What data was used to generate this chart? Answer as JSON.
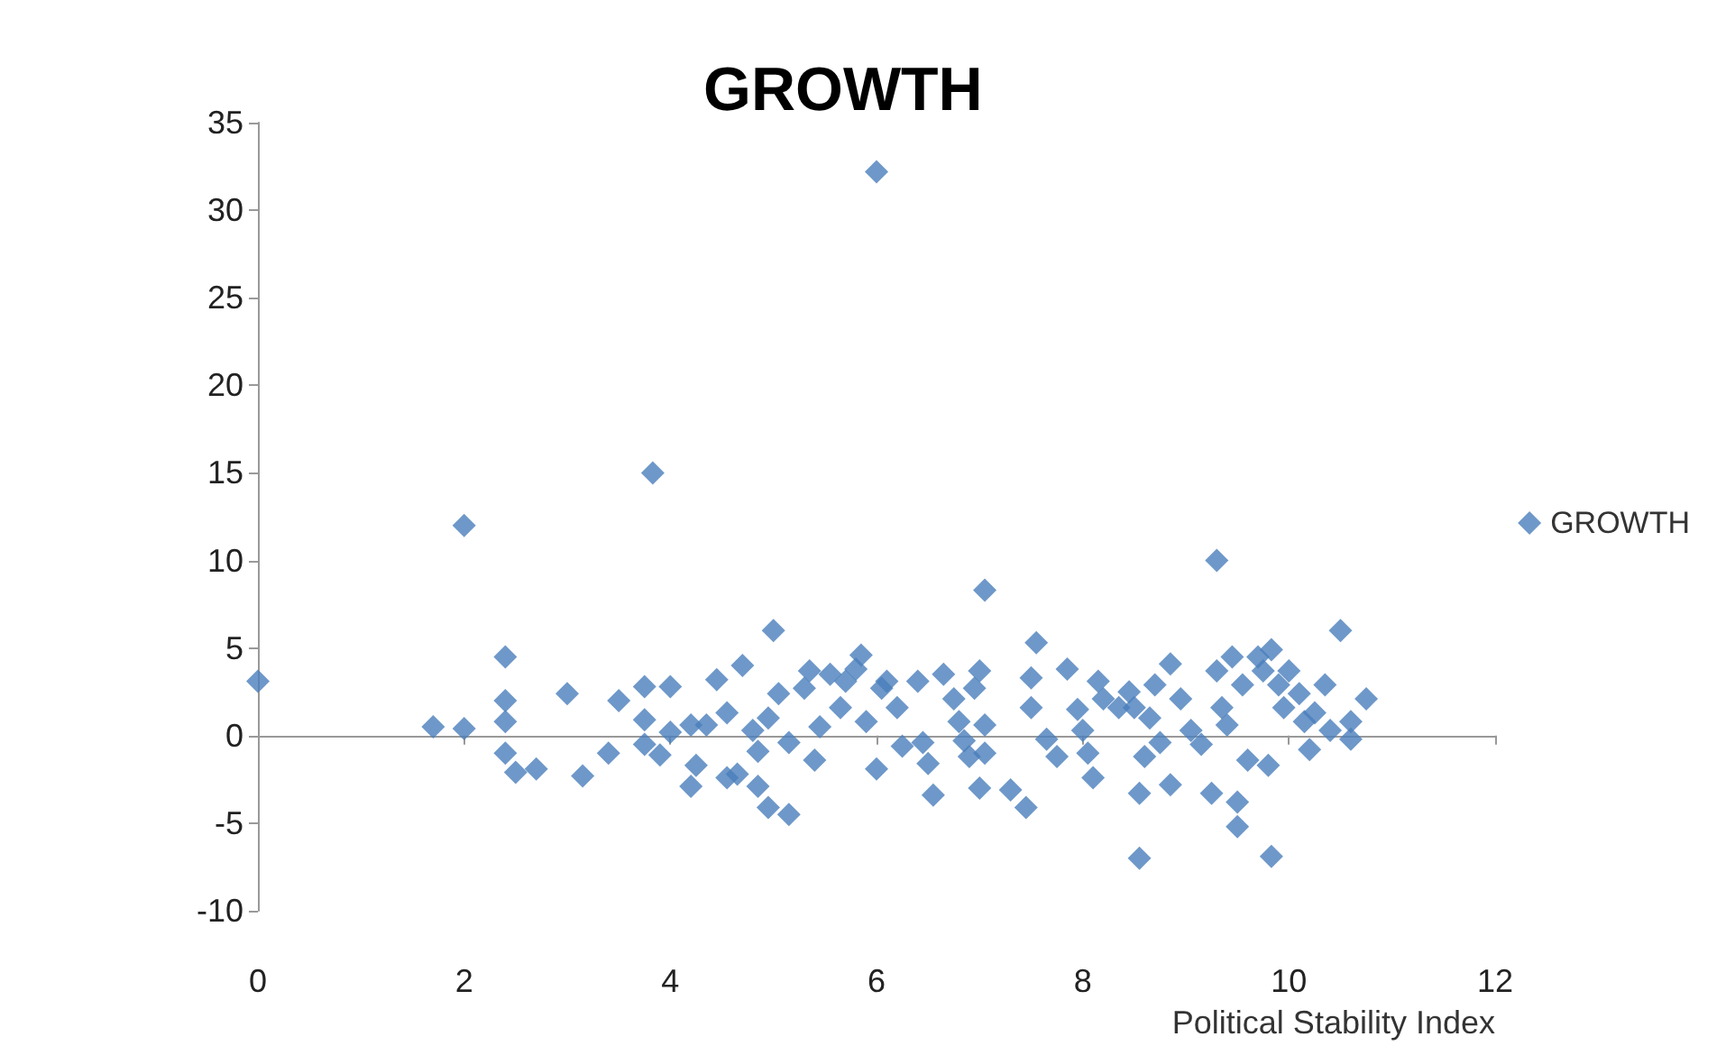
{
  "chart_data": {
    "type": "scatter",
    "title": "GROWTH",
    "xlabel": "Political Stability Index",
    "marker": "diamond",
    "legend": "right",
    "xlim": [
      0,
      12
    ],
    "xticks": [
      0,
      2,
      4,
      6,
      8,
      10,
      12
    ],
    "ylim": [
      -10,
      35
    ],
    "yticks": [
      -10,
      -5,
      0,
      5,
      10,
      15,
      20,
      25,
      30,
      35
    ],
    "series": [
      {
        "name": "GROWTH",
        "color": "#4a7ebb",
        "x": [
          0,
          1.7,
          2.0,
          2.0,
          2.4,
          2.4,
          2.4,
          2.4,
          2.5,
          2.7,
          3.0,
          3.15,
          3.4,
          3.5,
          3.75,
          3.83,
          3.75,
          3.75,
          3.9,
          4.0,
          4.0,
          4.2,
          4.25,
          4.35,
          4.2,
          4.45,
          4.55,
          4.65,
          4.7,
          4.55,
          4.8,
          4.85,
          4.85,
          5.0,
          4.95,
          5.05,
          5.15,
          4.95,
          5.15,
          5.3,
          5.35,
          5.45,
          5.4,
          5.55,
          5.65,
          5.7,
          5.8,
          5.85,
          5.9,
          6.0,
          6.05,
          6.1,
          6.0,
          6.2,
          6.25,
          6.4,
          6.45,
          6.5,
          6.55,
          6.65,
          6.75,
          6.8,
          6.85,
          6.9,
          6.95,
          7.05,
          7.0,
          7.05,
          7.0,
          7.05,
          7.3,
          7.45,
          7.5,
          7.55,
          7.5,
          7.65,
          7.75,
          7.85,
          7.95,
          8.0,
          8.05,
          8.1,
          8.15,
          8.2,
          8.35,
          8.45,
          8.5,
          8.55,
          8.55,
          8.6,
          8.65,
          8.7,
          8.75,
          8.85,
          8.85,
          8.95,
          9.05,
          9.15,
          9.25,
          9.3,
          9.3,
          9.35,
          9.4,
          9.45,
          9.5,
          9.5,
          9.55,
          9.6,
          9.7,
          9.75,
          9.8,
          9.83,
          9.83,
          9.9,
          9.95,
          10.0,
          10.1,
          10.15,
          10.2,
          10.25,
          10.35,
          10.4,
          10.5,
          10.6,
          10.6,
          10.75
        ],
        "values": [
          3.1,
          0.5,
          0.4,
          12.0,
          4.5,
          2.0,
          0.8,
          -1.0,
          -2.1,
          -1.9,
          2.4,
          -2.3,
          -1.0,
          2.0,
          2.8,
          15.0,
          0.9,
          -0.5,
          -1.1,
          2.8,
          0.2,
          0.6,
          -1.7,
          0.6,
          -2.9,
          3.2,
          1.3,
          -2.2,
          4.0,
          -2.4,
          0.3,
          -0.9,
          -2.9,
          6.0,
          1.0,
          2.4,
          -0.4,
          -4.1,
          -4.5,
          2.7,
          3.7,
          0.5,
          -1.4,
          3.5,
          1.6,
          3.1,
          3.8,
          4.6,
          0.8,
          32.2,
          2.7,
          3.1,
          -1.9,
          1.6,
          -0.6,
          3.1,
          -0.4,
          -1.6,
          -3.4,
          3.5,
          2.1,
          0.8,
          -0.3,
          -1.2,
          2.7,
          8.3,
          3.7,
          0.6,
          -3.0,
          -1.0,
          -3.1,
          -4.1,
          3.3,
          5.3,
          1.6,
          -0.2,
          -1.2,
          3.8,
          1.5,
          0.3,
          -1.0,
          -2.4,
          3.1,
          2.1,
          1.6,
          2.5,
          1.6,
          -7.0,
          -3.3,
          -1.2,
          1.0,
          2.9,
          -0.4,
          4.1,
          -2.8,
          2.1,
          0.3,
          -0.5,
          -3.3,
          10.0,
          3.7,
          1.6,
          0.6,
          4.5,
          -5.2,
          -3.8,
          2.9,
          -1.4,
          4.5,
          3.7,
          -1.7,
          -6.9,
          4.9,
          2.9,
          1.6,
          3.7,
          2.4,
          0.8,
          -0.8,
          1.3,
          2.9,
          0.3,
          6.0,
          0.8,
          -0.2,
          2.1
        ]
      }
    ]
  }
}
